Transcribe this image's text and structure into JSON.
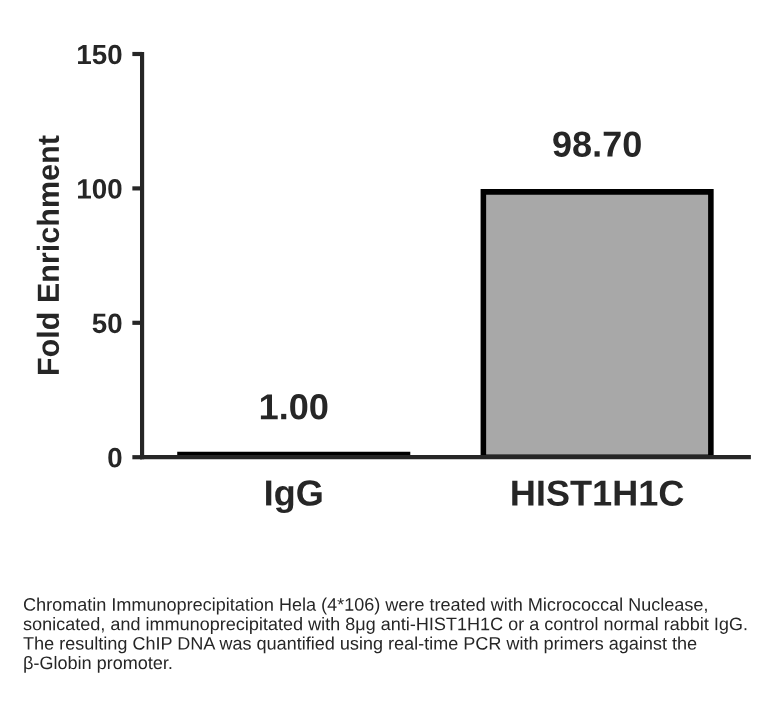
{
  "chart_data": {
    "type": "bar",
    "ylabel": "Fold Enrichment",
    "categories": [
      "IgG",
      "HIST1H1C"
    ],
    "values": [
      1.0,
      98.7
    ],
    "value_labels": [
      "1.00",
      "98.70"
    ],
    "colors": [
      "#000000",
      "#a8a8a8"
    ],
    "ylim": [
      0,
      150
    ],
    "yticks": [
      0,
      50,
      100,
      150
    ],
    "grid": false,
    "annotations": [
      "Chromatin Immunoprecipitation Hela (4*106) were treated with Micrococcal Nuclease, sonicated, and immunoprecipitated with 8μg anti-HIST1H1C or a control normal rabbit IgG. The resulting ChIP DNA was quantified using real-time PCR with primers against the β-Globin promoter."
    ]
  }
}
